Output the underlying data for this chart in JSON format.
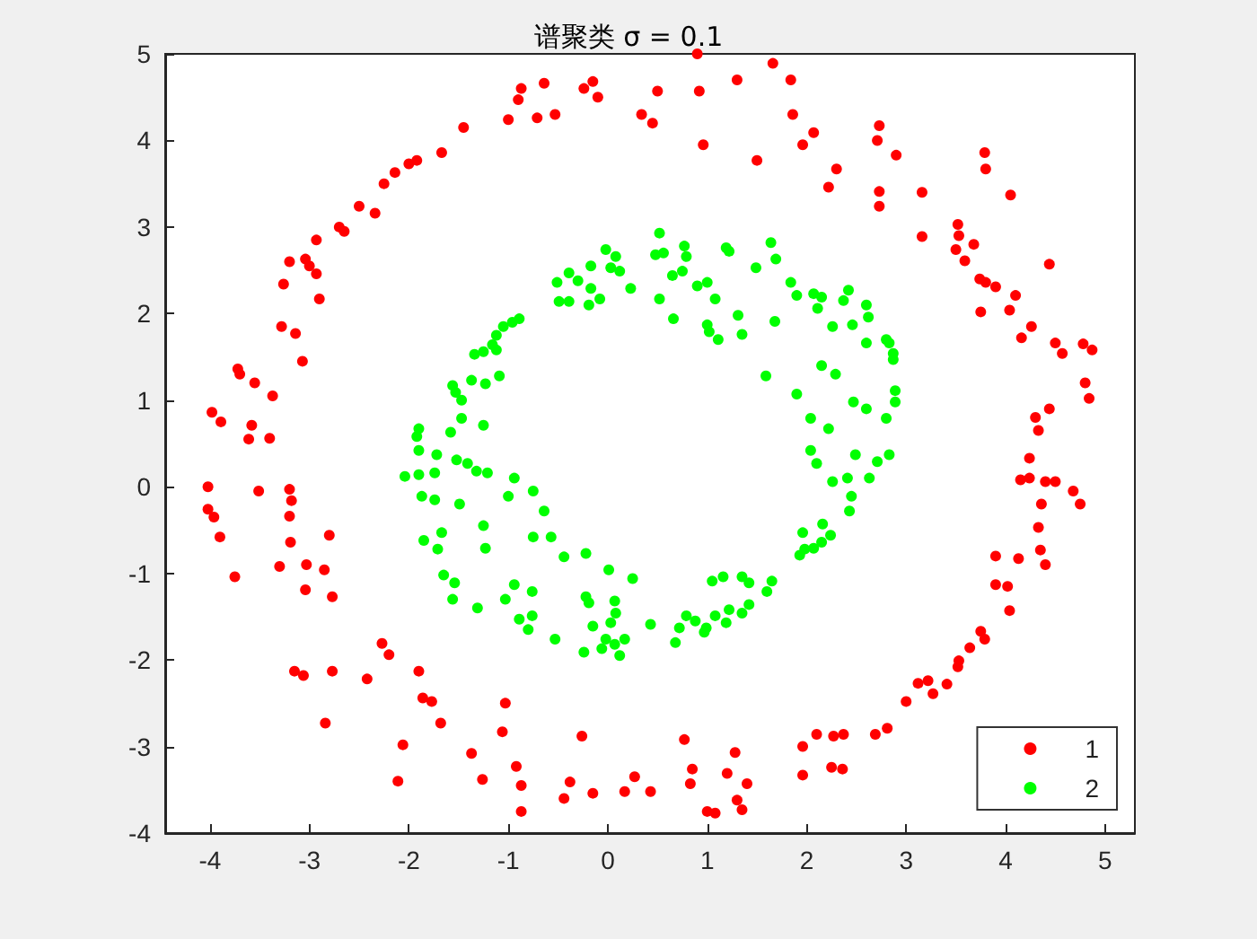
{
  "chart_data": {
    "type": "scatter",
    "title": "谱聚类 σ = 0.1",
    "xlim": [
      -4.45,
      5.3
    ],
    "ylim": [
      -4,
      5
    ],
    "xticks": [
      -4,
      -3,
      -2,
      -1,
      0,
      1,
      2,
      3,
      4,
      5
    ],
    "yticks": [
      -4,
      -3,
      -2,
      -1,
      0,
      1,
      2,
      3,
      4,
      5
    ],
    "grid": false,
    "legend": "bottom right",
    "marker": "circle",
    "series": [
      {
        "name": "1",
        "color": "#ff0000",
        "x": [
          0.9,
          1.66,
          1.84,
          1.3,
          0.92,
          0.5,
          0.45,
          0.96,
          0.34,
          -0.15,
          -0.1,
          -0.24,
          -0.64,
          -0.87,
          -0.53,
          -0.9,
          -0.71,
          -1.0,
          -1.45,
          -1.67,
          -1.92,
          -2.14,
          -2.0,
          -2.25,
          -2.34,
          -2.5,
          -2.7,
          -2.65,
          -2.93,
          -3.04,
          -3.2,
          -2.93,
          -2.9,
          -3.26,
          -3.0,
          -3.14,
          -3.28,
          -3.07,
          -3.72,
          -3.7,
          -3.55,
          -3.37,
          -3.98,
          -3.89,
          -3.58,
          -3.61,
          -3.4,
          -4.02,
          -4.02,
          -3.96,
          -3.9,
          -3.75,
          -3.51,
          -3.2,
          -3.18,
          -3.2,
          -3.19,
          -3.3,
          -2.8,
          -3.03,
          -3.04,
          -2.85,
          -2.77,
          -3.15,
          -3.06,
          -2.77,
          -2.84,
          -2.42,
          -2.27,
          -2.2,
          -1.9,
          -1.77,
          -1.86,
          -1.68,
          -2.06,
          -2.11,
          -1.37,
          -1.26,
          -1.06,
          -0.92,
          -0.87,
          -0.87,
          -1.03,
          -0.38,
          -0.44,
          -0.26,
          0.27,
          0.17,
          0.43,
          -0.15,
          0.77,
          0.85,
          0.83,
          1.0,
          1.08,
          1.28,
          1.2,
          1.4,
          1.3,
          1.35,
          1.96,
          1.96,
          2.1,
          2.27,
          2.25,
          2.36,
          2.37,
          2.69,
          2.81,
          3.0,
          3.12,
          3.22,
          3.27,
          3.41,
          3.52,
          3.53,
          3.64,
          3.75,
          3.79,
          3.9,
          4.02,
          4.04,
          3.9,
          4.13,
          4.35,
          4.4,
          4.33,
          4.36,
          4.4,
          4.15,
          4.24,
          4.5,
          4.75,
          4.68,
          4.24,
          4.3,
          4.33,
          4.44,
          4.84,
          4.8,
          4.78,
          4.87,
          4.57,
          4.5,
          4.26,
          4.44,
          4.1,
          4.16,
          4.04,
          3.75,
          3.9,
          3.8,
          3.74,
          3.59,
          3.53,
          3.5,
          3.68,
          3.52,
          3.16,
          3.79,
          3.8,
          4.05,
          3.16,
          2.73,
          2.71,
          2.9,
          2.73,
          2.73,
          2.3,
          2.22,
          1.96,
          2.07,
          1.86,
          1.5
        ],
        "values": [
          5.0,
          4.89,
          4.7,
          4.7,
          4.57,
          4.57,
          4.2,
          3.95,
          4.3,
          4.68,
          4.5,
          4.6,
          4.66,
          4.6,
          4.3,
          4.47,
          4.26,
          4.24,
          4.15,
          3.86,
          3.77,
          3.63,
          3.73,
          3.5,
          3.16,
          3.24,
          3.0,
          2.95,
          2.85,
          2.63,
          2.6,
          2.46,
          2.17,
          2.34,
          2.55,
          1.77,
          1.85,
          1.45,
          1.36,
          1.3,
          1.2,
          1.05,
          0.86,
          0.75,
          0.71,
          0.55,
          0.56,
          0.0,
          -0.26,
          -0.35,
          -0.58,
          -1.04,
          -0.05,
          -0.03,
          -0.16,
          -0.34,
          -0.64,
          -0.92,
          -0.56,
          -0.9,
          -1.19,
          -0.96,
          -1.27,
          -2.13,
          -2.18,
          -2.13,
          -2.73,
          -2.22,
          -1.81,
          -1.94,
          -2.13,
          -2.48,
          -2.44,
          -2.73,
          -2.98,
          -3.4,
          -3.08,
          -3.38,
          -2.83,
          -3.23,
          -3.45,
          -3.75,
          -2.5,
          -3.41,
          -3.6,
          -2.88,
          -3.35,
          -3.52,
          -3.52,
          -3.54,
          -2.92,
          -3.26,
          -3.43,
          -3.75,
          -3.77,
          -3.07,
          -3.31,
          -3.43,
          -3.62,
          -3.73,
          -3.0,
          -3.33,
          -2.86,
          -2.88,
          -3.24,
          -3.26,
          -2.86,
          -2.86,
          -2.79,
          -2.48,
          -2.27,
          -2.24,
          -2.39,
          -2.28,
          -2.08,
          -2.01,
          -1.86,
          -1.67,
          -1.76,
          -1.13,
          -1.15,
          -1.43,
          -0.8,
          -0.83,
          -0.73,
          -0.9,
          -0.47,
          -0.2,
          0.06,
          0.08,
          0.1,
          0.06,
          -0.2,
          -0.05,
          0.33,
          0.8,
          0.65,
          0.9,
          1.02,
          1.2,
          1.65,
          1.58,
          1.54,
          1.66,
          1.85,
          2.57,
          2.21,
          1.72,
          2.04,
          2.02,
          2.31,
          2.36,
          2.4,
          2.61,
          2.9,
          2.74,
          2.8,
          3.03,
          2.89,
          3.86,
          3.67,
          3.37,
          3.4,
          4.17,
          4.0,
          3.83,
          3.41,
          3.24,
          3.67,
          3.46,
          3.95,
          4.09,
          4.3,
          3.77
        ]
      },
      {
        "name": "2",
        "color": "#00ff00",
        "x": [
          -0.51,
          -0.39,
          -0.3,
          -0.17,
          -0.02,
          0.08,
          0.03,
          0.12,
          0.23,
          -0.17,
          -0.49,
          -0.39,
          -0.19,
          -0.08,
          -0.89,
          -0.96,
          -1.05,
          -1.12,
          -1.16,
          -1.12,
          -1.25,
          -1.34,
          -1.09,
          -1.23,
          -1.37,
          -1.56,
          -1.53,
          -1.47,
          -1.47,
          -1.25,
          -1.58,
          -1.9,
          -1.92,
          -1.9,
          -1.72,
          -2.04,
          -1.9,
          -1.74,
          -1.52,
          -1.41,
          -1.32,
          -1.21,
          -0.94,
          -1.0,
          -0.75,
          -0.64,
          -1.87,
          -1.74,
          -1.49,
          -1.25,
          -0.75,
          -0.57,
          -1.85,
          -1.67,
          -1.71,
          -1.23,
          -0.44,
          -0.22,
          0.01,
          0.25,
          -1.65,
          -1.54,
          -1.56,
          -1.31,
          -0.94,
          -1.03,
          -0.76,
          -0.76,
          -0.89,
          -0.8,
          -0.53,
          -0.22,
          -0.19,
          0.07,
          0.08,
          0.03,
          -0.15,
          -0.02,
          -0.06,
          0.07,
          -0.24,
          0.12,
          0.17,
          0.43,
          0.68,
          0.72,
          0.79,
          0.88,
          0.97,
          0.99,
          1.08,
          1.19,
          1.22,
          1.35,
          1.42,
          1.6,
          1.65,
          1.05,
          1.16,
          1.35,
          1.42,
          1.93,
          1.98,
          2.07,
          2.15,
          2.24,
          2.16,
          1.96,
          2.43,
          2.45,
          2.41,
          2.26,
          2.63,
          2.71,
          2.83,
          2.49,
          2.04,
          2.1,
          0.52,
          0.48,
          0.56,
          0.77,
          0.79,
          0.65,
          0.75,
          0.52,
          0.66,
          0.9,
          1.0,
          1.08,
          1.19,
          1.22,
          1.49,
          1.64,
          1.69,
          1.0,
          1.02,
          1.11,
          1.31,
          1.35,
          1.68,
          1.59,
          1.84,
          1.9,
          2.07,
          2.15,
          2.11,
          2.26,
          2.37,
          2.42,
          2.46,
          2.6,
          2.62,
          2.6,
          2.8,
          2.83,
          2.87,
          2.87,
          2.15,
          2.29,
          1.9,
          2.04,
          2.22,
          2.47,
          2.6,
          2.8,
          2.89,
          2.89
        ],
        "values": [
          2.36,
          2.47,
          2.38,
          2.55,
          2.74,
          2.66,
          2.53,
          2.49,
          2.29,
          2.29,
          2.14,
          2.14,
          2.1,
          2.17,
          1.94,
          1.9,
          1.85,
          1.75,
          1.64,
          1.58,
          1.56,
          1.53,
          1.28,
          1.19,
          1.23,
          1.17,
          1.09,
          1.0,
          0.79,
          0.71,
          0.63,
          0.67,
          0.58,
          0.42,
          0.37,
          0.12,
          0.14,
          0.16,
          0.31,
          0.27,
          0.18,
          0.16,
          0.1,
          -0.11,
          -0.05,
          -0.28,
          -0.11,
          -0.15,
          -0.2,
          -0.45,
          -0.58,
          -0.58,
          -0.62,
          -0.53,
          -0.72,
          -0.71,
          -0.81,
          -0.77,
          -0.96,
          -1.06,
          -1.02,
          -1.11,
          -1.3,
          -1.4,
          -1.13,
          -1.3,
          -1.21,
          -1.49,
          -1.53,
          -1.65,
          -1.76,
          -1.27,
          -1.34,
          -1.32,
          -1.46,
          -1.57,
          -1.61,
          -1.76,
          -1.87,
          -1.82,
          -1.91,
          -1.95,
          -1.76,
          -1.59,
          -1.8,
          -1.63,
          -1.49,
          -1.55,
          -1.68,
          -1.63,
          -1.49,
          -1.57,
          -1.42,
          -1.46,
          -1.36,
          -1.21,
          -1.09,
          -1.09,
          -1.04,
          -1.04,
          -1.11,
          -0.79,
          -0.72,
          -0.71,
          -0.64,
          -0.56,
          -0.43,
          -0.53,
          -0.28,
          -0.11,
          0.1,
          0.06,
          0.1,
          0.29,
          0.37,
          0.37,
          0.42,
          0.27,
          2.93,
          2.68,
          2.7,
          2.78,
          2.66,
          2.44,
          2.49,
          2.17,
          1.94,
          2.32,
          2.36,
          2.17,
          2.76,
          2.72,
          2.53,
          2.82,
          2.63,
          1.87,
          1.79,
          1.7,
          1.98,
          1.76,
          1.91,
          1.28,
          2.36,
          2.21,
          2.23,
          2.19,
          2.06,
          1.85,
          2.15,
          2.27,
          1.87,
          2.1,
          1.96,
          1.66,
          1.7,
          1.66,
          1.54,
          1.47,
          1.4,
          1.3,
          1.07,
          0.79,
          0.67,
          0.98,
          0.9,
          0.79,
          0.98,
          1.11
        ]
      }
    ]
  }
}
